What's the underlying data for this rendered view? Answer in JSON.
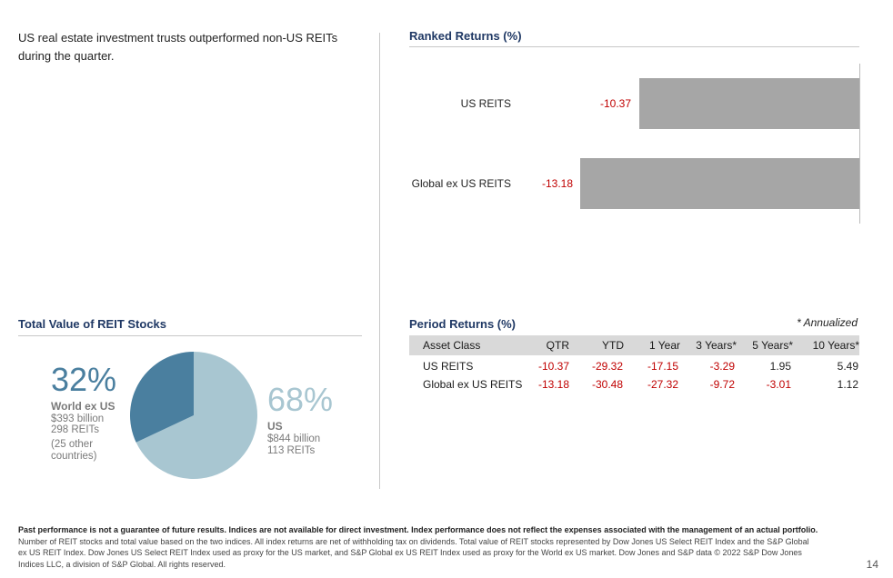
{
  "headline": "US real estate investment trusts outperformed non-US REITs during the quarter.",
  "ranked_returns": {
    "title": "Ranked Returns (%)",
    "rows": [
      {
        "label": "US REITS",
        "value": "-10.37"
      },
      {
        "label": "Global ex US REITS",
        "value": "-13.18"
      }
    ]
  },
  "total_value": {
    "title": "Total Value of REIT Stocks",
    "world": {
      "percent": "32%",
      "name": "World ex US",
      "value": "$393 billion",
      "count": "298 REITs",
      "note1": "(25 other",
      "note2": "countries)"
    },
    "us": {
      "percent": "68%",
      "name": "US",
      "value": "$844 billion",
      "count": "113 REITs"
    }
  },
  "period_returns": {
    "title": "Period Returns (%)",
    "annualized_note": "* Annualized",
    "columns": [
      "Asset Class",
      "QTR",
      "YTD",
      "1 Year",
      "3 Years*",
      "5 Years*",
      "10 Years*"
    ],
    "rows": [
      {
        "name": "US REITS",
        "values": [
          "-10.37",
          "-29.32",
          "-17.15",
          "-3.29",
          "1.95",
          "5.49"
        ]
      },
      {
        "name": "Global ex US REITS",
        "values": [
          "-13.18",
          "-30.48",
          "-27.32",
          "-9.72",
          "-3.01",
          "1.12"
        ]
      }
    ]
  },
  "footer": {
    "bold": "Past performance is not a guarantee of future results. Indices are not available for direct investment. Index performance does not reflect the expenses associated with the management of an actual portfolio.",
    "body": "Number of REIT stocks and total value based on the two indices. All index returns are net of withholding tax on dividends. Total value of REIT stocks represented by Dow Jones US Select REIT Index and the S&P Global ex US REIT Index. Dow Jones US Select REIT Index used as proxy for the US market, and S&P Global ex US REIT Index used as proxy for the World ex US market. Dow Jones and S&P data © 2022 S&P Dow Jones Indices LLC, a division of S&P Global. All rights reserved."
  },
  "page_number": "14",
  "colors": {
    "title_blue": "#1f3864",
    "negative_red": "#c00000",
    "bar_gray": "#a6a6a6",
    "pie_dark": "#4a7f9f",
    "pie_light": "#a8c6d1"
  },
  "chart_data": [
    {
      "type": "bar",
      "title": "Ranked Returns (%)",
      "orientation": "horizontal",
      "categories": [
        "US REITS",
        "Global ex US REITS"
      ],
      "values": [
        -10.37,
        -13.18
      ],
      "xlim": [
        -13.18,
        0
      ]
    },
    {
      "type": "pie",
      "title": "Total Value of REIT Stocks",
      "categories": [
        "World ex US",
        "US"
      ],
      "values": [
        32,
        68
      ]
    }
  ]
}
